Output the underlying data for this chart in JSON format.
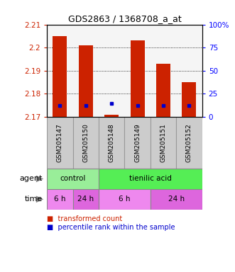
{
  "title": "GDS2863 / 1368708_a_at",
  "samples": [
    "GSM205147",
    "GSM205150",
    "GSM205148",
    "GSM205149",
    "GSM205151",
    "GSM205152"
  ],
  "bar_values": [
    2.205,
    2.201,
    2.171,
    2.203,
    2.193,
    2.185
  ],
  "bar_bottom": 2.17,
  "blue_dot_values": [
    2.175,
    2.175,
    2.176,
    2.175,
    2.175,
    2.175
  ],
  "ylim": [
    2.17,
    2.21
  ],
  "yticks": [
    2.17,
    2.18,
    2.19,
    2.2,
    2.21
  ],
  "ytick_labels": [
    "2.17",
    "2.18",
    "2.19",
    "2.2",
    "2.21"
  ],
  "right_yticks": [
    0,
    25,
    50,
    75,
    100
  ],
  "right_ytick_labels": [
    "0",
    "25",
    "50",
    "75",
    "100%"
  ],
  "bar_color": "#cc2200",
  "blue_dot_color": "#0000cc",
  "agent_groups": [
    {
      "label": "control",
      "start": 0,
      "end": 2,
      "color": "#99ee99"
    },
    {
      "label": "tienilic acid",
      "start": 2,
      "end": 6,
      "color": "#55ee55"
    }
  ],
  "time_groups": [
    {
      "label": "6 h",
      "start": 0,
      "end": 1,
      "color": "#ee88ee"
    },
    {
      "label": "24 h",
      "start": 1,
      "end": 2,
      "color": "#dd66dd"
    },
    {
      "label": "6 h",
      "start": 2,
      "end": 4,
      "color": "#ee88ee"
    },
    {
      "label": "24 h",
      "start": 4,
      "end": 6,
      "color": "#dd66dd"
    }
  ],
  "legend_red": "transformed count",
  "legend_blue": "percentile rank within the sample",
  "sample_box_color": "#cccccc",
  "sample_box_edge": "#999999"
}
